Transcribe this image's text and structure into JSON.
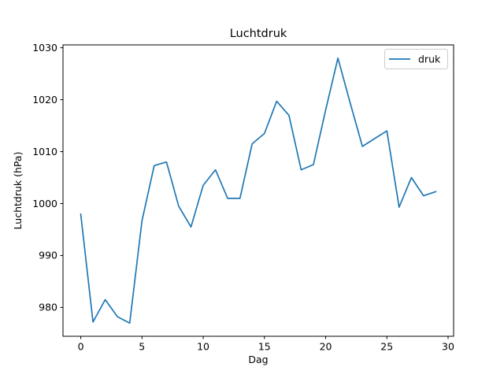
{
  "window": {
    "background": "#ffffff"
  },
  "chart_data": {
    "type": "line",
    "title": "Luchtdruk",
    "xlabel": "Dag",
    "ylabel": "Luchtdruk (hPa)",
    "x": [
      0,
      1,
      2,
      3,
      4,
      5,
      6,
      7,
      8,
      9,
      10,
      11,
      12,
      13,
      14,
      15,
      16,
      17,
      18,
      19,
      20,
      21,
      22,
      23,
      24,
      25,
      26,
      27,
      28,
      29
    ],
    "series": [
      {
        "name": "druk",
        "color": "#1f77b4",
        "values": [
          998,
          977.2,
          981.5,
          978.2,
          977,
          996.7,
          1007.3,
          1008,
          999.5,
          995.5,
          1003.5,
          1006.5,
          1001,
          1001,
          1011.5,
          1013.5,
          1019.7,
          1017,
          1006.5,
          1007.5,
          1018,
          1028,
          1019.4,
          1011,
          1012.5,
          1014,
          999.3,
          1005,
          1001.5,
          1002.3
        ]
      }
    ],
    "xlim": [
      -1.45,
      30.45
    ],
    "ylim": [
      974.45,
      1030.55
    ],
    "xticks": [
      0,
      5,
      10,
      15,
      20,
      25,
      30
    ],
    "yticks": [
      980,
      990,
      1000,
      1010,
      1020,
      1030
    ],
    "grid": false,
    "legend": {
      "position": "upper right",
      "entries": [
        "druk"
      ]
    }
  }
}
